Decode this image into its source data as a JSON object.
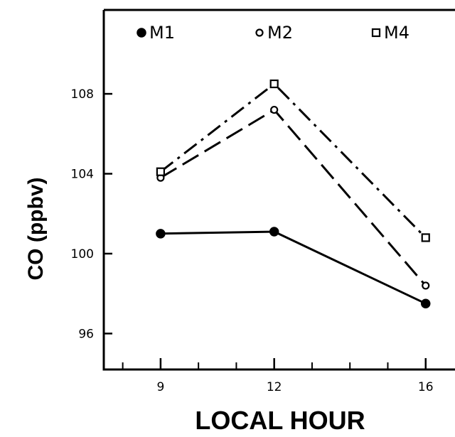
{
  "chart_data": {
    "type": "line",
    "xlabel": "LOCAL HOUR",
    "ylabel": "CO (ppbv)",
    "x": [
      9,
      12,
      16
    ],
    "xlim": [
      7.5,
      17
    ],
    "ylim": [
      94.2,
      112.2
    ],
    "xticks_major": [
      9,
      12,
      16
    ],
    "xticks_minor": [
      8,
      10,
      11,
      13,
      14,
      15
    ],
    "yticks": [
      96,
      100,
      104,
      108
    ],
    "legend_position": "top",
    "grid": false,
    "series": [
      {
        "name": "M1",
        "marker": "filled-circle",
        "line": "solid",
        "values": [
          101.0,
          101.1,
          97.5
        ]
      },
      {
        "name": "M2",
        "marker": "open-circle",
        "line": "dashed",
        "values": [
          103.8,
          107.2,
          98.4
        ]
      },
      {
        "name": "M4",
        "marker": "open-square",
        "line": "dash-dot",
        "values": [
          104.1,
          108.5,
          100.8
        ]
      }
    ]
  }
}
